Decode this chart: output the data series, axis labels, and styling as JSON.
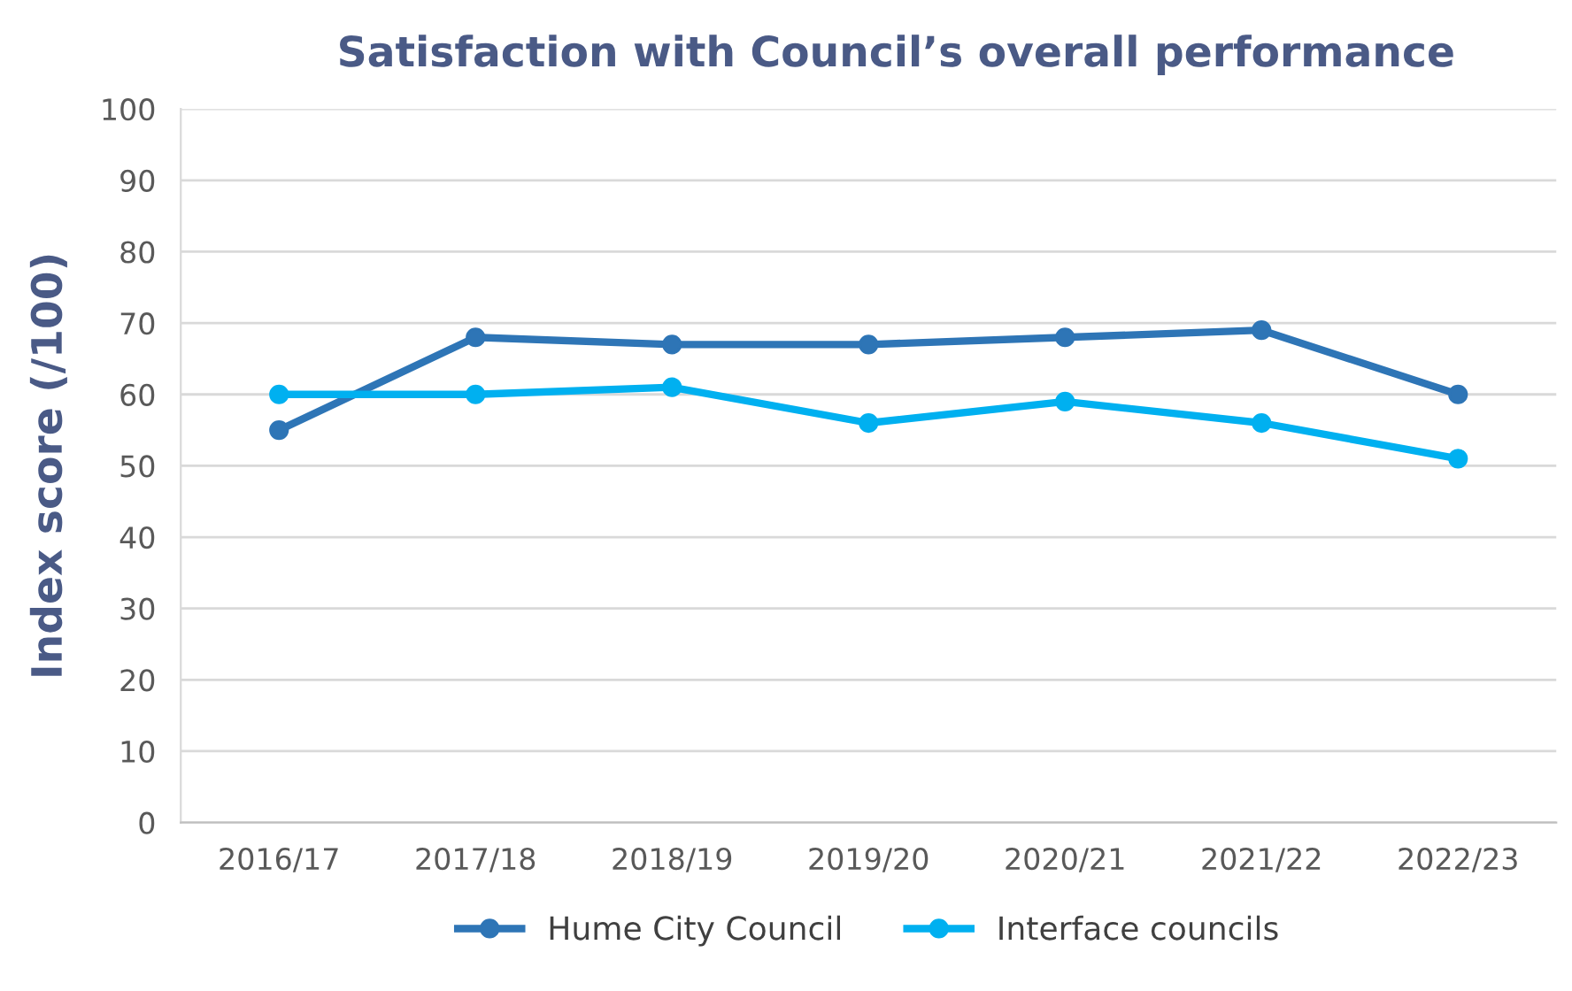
{
  "chart_data": {
    "type": "line",
    "title": "Satisfaction with Council’s overall performance",
    "ylabel": "Index score (/100)",
    "categories": [
      "2016/17",
      "2017/18",
      "2018/19",
      "2019/20",
      "2020/21",
      "2021/22",
      "2022/23"
    ],
    "series": [
      {
        "name": "Hume City Council",
        "color": "#2e75b6",
        "values": [
          55,
          68,
          67,
          67,
          68,
          69,
          60
        ]
      },
      {
        "name": "Interface councils",
        "color": "#00b0f0",
        "values": [
          60,
          60,
          61,
          56,
          59,
          56,
          51
        ]
      }
    ],
    "ylim": [
      0,
      100
    ],
    "yticks": [
      0,
      10,
      20,
      30,
      40,
      50,
      60,
      70,
      80,
      90,
      100
    ],
    "grid": "y",
    "legend": "bottom",
    "marker": "circle",
    "line_style": "solid"
  }
}
